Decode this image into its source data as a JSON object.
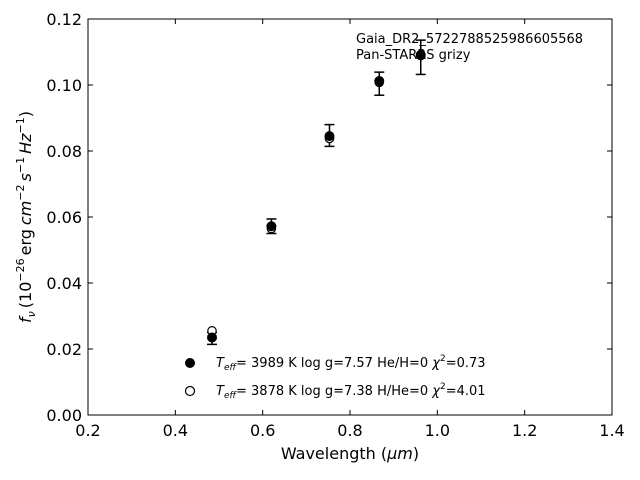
{
  "chart_data": {
    "type": "scatter",
    "xlabel_text": "Wavelength (",
    "xlabel_unit": "μm",
    "xlabel_close": ")",
    "ylabel_f": "f",
    "ylabel_nu": "ν",
    "ylabel_mid": "(10",
    "ylabel_exp": "−26",
    "ylabel_erg": "erg",
    "ylabel_cm": "cm",
    "ylabel_cm_exp": "−2",
    "ylabel_s": "s",
    "ylabel_s_exp": "−1",
    "ylabel_hz": "Hz",
    "ylabel_hz_exp": "−1",
    "ylabel_close": ")",
    "xlim": [
      0.2,
      1.4
    ],
    "ylim": [
      0.0,
      0.12
    ],
    "xticks": [
      0.2,
      0.4,
      0.6,
      0.8,
      1.0,
      1.2,
      1.4
    ],
    "xtick_labels": [
      "0.2",
      "0.4",
      "0.6",
      "0.8",
      "1.0",
      "1.2",
      "1.4"
    ],
    "yticks": [
      0.0,
      0.02,
      0.04,
      0.06,
      0.08,
      0.1,
      0.12
    ],
    "ytick_labels": [
      "0.00",
      "0.02",
      "0.04",
      "0.06",
      "0.08",
      "0.10",
      "0.12"
    ],
    "annotation_line1": "Gaia_DR2_5722788525986605568",
    "annotation_line2": "Pan-STARRS grizy",
    "observed": {
      "x": [
        0.484,
        0.62,
        0.753,
        0.867,
        0.962
      ],
      "y": [
        0.0232,
        0.0572,
        0.0847,
        0.1004,
        0.1084
      ],
      "yerr": [
        0.0018,
        0.0022,
        0.0033,
        0.0035,
        0.0052
      ]
    },
    "series": [
      {
        "marker": "filled",
        "x": [
          0.484,
          0.62,
          0.753,
          0.867,
          0.962
        ],
        "y": [
          0.0235,
          0.0572,
          0.0845,
          0.1012,
          0.1091
        ],
        "legend": {
          "teff_label": "T",
          "teff_sub": "eff",
          "teff_value": "=  3989 K  log g=7.57  He/H=0  ",
          "chi_label": "χ",
          "chi_exp": "2",
          "chi_value": "=0.73"
        }
      },
      {
        "marker": "open",
        "x": [
          0.484,
          0.62,
          0.753,
          0.867,
          0.962
        ],
        "y": [
          0.0255,
          0.0565,
          0.0838,
          0.1008,
          0.1089
        ],
        "legend": {
          "teff_label": "T",
          "teff_sub": "eff",
          "teff_value": "=  3878 K  log g=7.38  H/He=0  ",
          "chi_label": "χ",
          "chi_exp": "2",
          "chi_value": "=4.01"
        }
      }
    ]
  }
}
